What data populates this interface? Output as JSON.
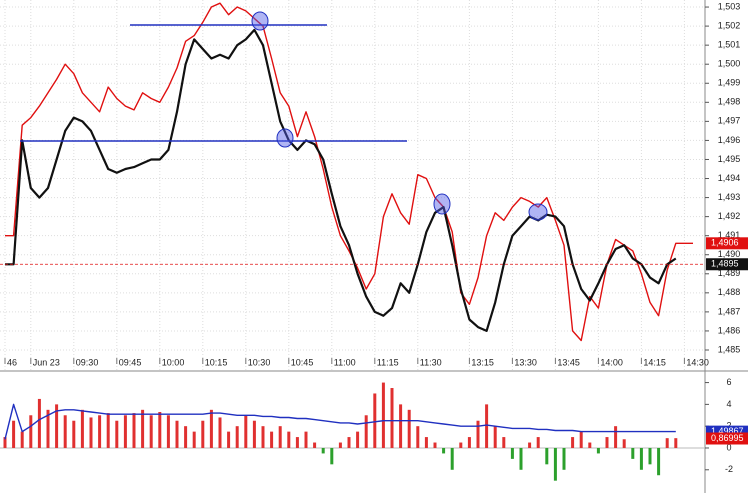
{
  "chart_data": [
    {
      "type": "line",
      "categories": [
        "46",
        null,
        null,
        "Jun 23",
        null,
        null,
        null,
        null,
        "09:30",
        null,
        null,
        null,
        null,
        "09:45",
        null,
        null,
        null,
        null,
        "10:00",
        null,
        null,
        null,
        null,
        "10:15",
        null,
        null,
        null,
        null,
        "10:30",
        null,
        null,
        null,
        null,
        "10:45",
        null,
        null,
        null,
        null,
        "11:00",
        null,
        null,
        null,
        null,
        "11:15",
        null,
        null,
        null,
        null,
        "11:30",
        null,
        null,
        null,
        null,
        null,
        "13:15",
        null,
        null,
        null,
        null,
        "13:30",
        null,
        null,
        null,
        null,
        "13:45",
        null,
        null,
        null,
        null,
        "14:00",
        null,
        null,
        null,
        null,
        "14:15",
        null,
        null,
        null,
        null,
        "14:30",
        null
      ],
      "series": [
        {
          "color": "#e01010",
          "values": [
            1.491,
            1.491,
            1.4968,
            1.4972,
            1.4978,
            1.4985,
            1.4992,
            1.5,
            1.4995,
            1.4985,
            1.498,
            1.4975,
            1.4988,
            1.4982,
            1.4978,
            1.4976,
            1.4985,
            1.4982,
            1.498,
            1.4988,
            1.4998,
            1.5012,
            1.5015,
            1.5022,
            1.503,
            1.5032,
            1.5026,
            1.503,
            1.5028,
            1.5024,
            1.502,
            1.5003,
            1.4985,
            1.4978,
            1.4962,
            1.4975,
            1.4962,
            1.4945,
            1.4925,
            1.491,
            1.4902,
            1.4893,
            1.4882,
            1.489,
            1.492,
            1.4932,
            1.4922,
            1.4916,
            1.4942,
            1.494,
            1.493,
            1.4925,
            1.4912,
            1.488,
            1.4874,
            1.4888,
            1.491,
            1.4922,
            1.4918,
            1.4925,
            1.493,
            1.4928,
            1.4925,
            1.493,
            1.4918,
            1.4905,
            1.486,
            1.4855,
            1.4878,
            1.4872,
            1.4895,
            1.4908,
            1.4905,
            1.4902,
            1.489,
            1.4875,
            1.4868,
            1.4892,
            1.4906,
            1.4906,
            1.4906
          ]
        },
        {
          "color": "#111111",
          "values": [
            1.4895,
            1.4895,
            1.496,
            1.4935,
            1.493,
            1.4935,
            1.495,
            1.4965,
            1.4972,
            1.497,
            1.4965,
            1.4955,
            1.4945,
            1.4943,
            1.4945,
            1.4946,
            1.4948,
            1.495,
            1.495,
            1.4955,
            1.4975,
            1.5,
            1.5013,
            1.5008,
            1.5003,
            1.5005,
            1.5003,
            1.501,
            1.5013,
            1.5018,
            1.501,
            1.499,
            1.497,
            1.496,
            1.4955,
            1.496,
            1.4958,
            1.495,
            1.4932,
            1.4915,
            1.4905,
            1.489,
            1.4878,
            1.487,
            1.4868,
            1.4872,
            1.4885,
            1.488,
            1.4895,
            1.4912,
            1.4922,
            1.4925,
            1.4905,
            1.4882,
            1.4866,
            1.4862,
            1.486,
            1.4875,
            1.4895,
            1.491,
            1.4915,
            1.492,
            1.4918,
            1.4921,
            1.492,
            1.4915,
            1.4895,
            1.4882,
            1.4876,
            1.4885,
            1.4895,
            1.4903,
            1.4905,
            1.4898,
            1.4895,
            1.4888,
            1.4885,
            1.4895,
            1.4898,
            null,
            null
          ]
        }
      ],
      "ylim": [
        1.48395,
        1.50337
      ],
      "yticks": [
        {
          "value": 1.485,
          "label": "1,485"
        },
        {
          "value": 1.486,
          "label": "1,486"
        },
        {
          "value": 1.487,
          "label": "1,487"
        },
        {
          "value": 1.488,
          "label": "1,488"
        },
        {
          "value": 1.489,
          "label": "1,489"
        },
        {
          "value": 1.49,
          "label": "1,490"
        },
        {
          "value": 1.491,
          "label": "1,491"
        },
        {
          "value": 1.492,
          "label": "1,492"
        },
        {
          "value": 1.493,
          "label": "1,493"
        },
        {
          "value": 1.494,
          "label": "1,494"
        },
        {
          "value": 1.495,
          "label": "1,495"
        },
        {
          "value": 1.496,
          "label": "1,496"
        },
        {
          "value": 1.497,
          "label": "1,497"
        },
        {
          "value": 1.498,
          "label": "1,498"
        },
        {
          "value": 1.499,
          "label": "1,499"
        },
        {
          "value": 1.5,
          "label": "1,500"
        },
        {
          "value": 1.501,
          "label": "1,501"
        },
        {
          "value": 1.502,
          "label": "1,502"
        },
        {
          "value": 1.503,
          "label": "1,503"
        }
      ],
      "markers": [
        {
          "value": 1.4906,
          "label": "1,4906",
          "color": "#e01010"
        },
        {
          "value": 1.4895,
          "label": "1,4895",
          "color": "#111111",
          "style": "dashed"
        }
      ],
      "grid": true
    },
    {
      "type": "bar",
      "series": [
        {
          "type": "bar",
          "color": "#e03030",
          "negative_color": "#2ca02c",
          "values": [
            1.0,
            2.5,
            1.5,
            3.0,
            4.5,
            3.5,
            4.0,
            3.0,
            2.5,
            3.5,
            2.8,
            3.0,
            3.2,
            2.5,
            3.0,
            3.2,
            3.5,
            3.0,
            3.3,
            3.0,
            2.5,
            2.0,
            1.5,
            2.5,
            3.5,
            2.8,
            1.5,
            2.0,
            3.0,
            2.5,
            2.0,
            1.5,
            2.0,
            1.5,
            1.0,
            1.5,
            0.5,
            -0.5,
            -1.5,
            0.5,
            1.0,
            1.5,
            3.0,
            5.0,
            6.0,
            5.5,
            4.0,
            3.5,
            2.0,
            1.0,
            0.5,
            -0.5,
            -2.0,
            0.5,
            1.0,
            2.5,
            4.0,
            2.0,
            1.0,
            -1.0,
            -2.0,
            0.5,
            1.0,
            -1.5,
            -3.0,
            -2.0,
            1.0,
            1.5,
            0.5,
            -0.5,
            1.0,
            2.0,
            0.8,
            -1.0,
            -2.0,
            -1.5,
            -2.5,
            0.9,
            0.9,
            null,
            null
          ]
        },
        {
          "type": "line",
          "color": "#2030c0",
          "values": [
            0.8,
            4.0,
            1.5,
            2.0,
            2.6,
            3.0,
            3.4,
            3.5,
            3.5,
            3.4,
            3.3,
            3.2,
            3.1,
            3.1,
            3.1,
            3.1,
            3.1,
            3.1,
            3.1,
            3.1,
            3.1,
            3.1,
            3.1,
            3.1,
            3.2,
            3.2,
            3.1,
            3.0,
            3.0,
            3.0,
            2.9,
            2.9,
            2.8,
            2.8,
            2.7,
            2.7,
            2.6,
            2.5,
            2.4,
            2.3,
            2.3,
            2.2,
            2.3,
            2.4,
            2.5,
            2.5,
            2.5,
            2.5,
            2.5,
            2.4,
            2.3,
            2.2,
            2.1,
            2.0,
            2.0,
            2.0,
            2.1,
            2.0,
            1.9,
            1.8,
            1.8,
            1.8,
            1.7,
            1.7,
            1.6,
            1.6,
            1.6,
            1.5,
            1.5,
            1.5,
            1.5,
            1.5,
            1.5,
            1.5,
            1.5,
            1.5,
            1.5,
            1.5,
            1.5,
            null,
            null
          ]
        }
      ],
      "ylim": [
        -4.13,
        6.97
      ],
      "yticks": [
        6,
        4,
        2,
        0,
        -2
      ],
      "markers": [
        {
          "value": 1.49867,
          "label": "1,49867",
          "color": "#2030c0"
        },
        {
          "value": 0.86995,
          "label": "0,86995",
          "color": "#e01010"
        }
      ]
    }
  ]
}
